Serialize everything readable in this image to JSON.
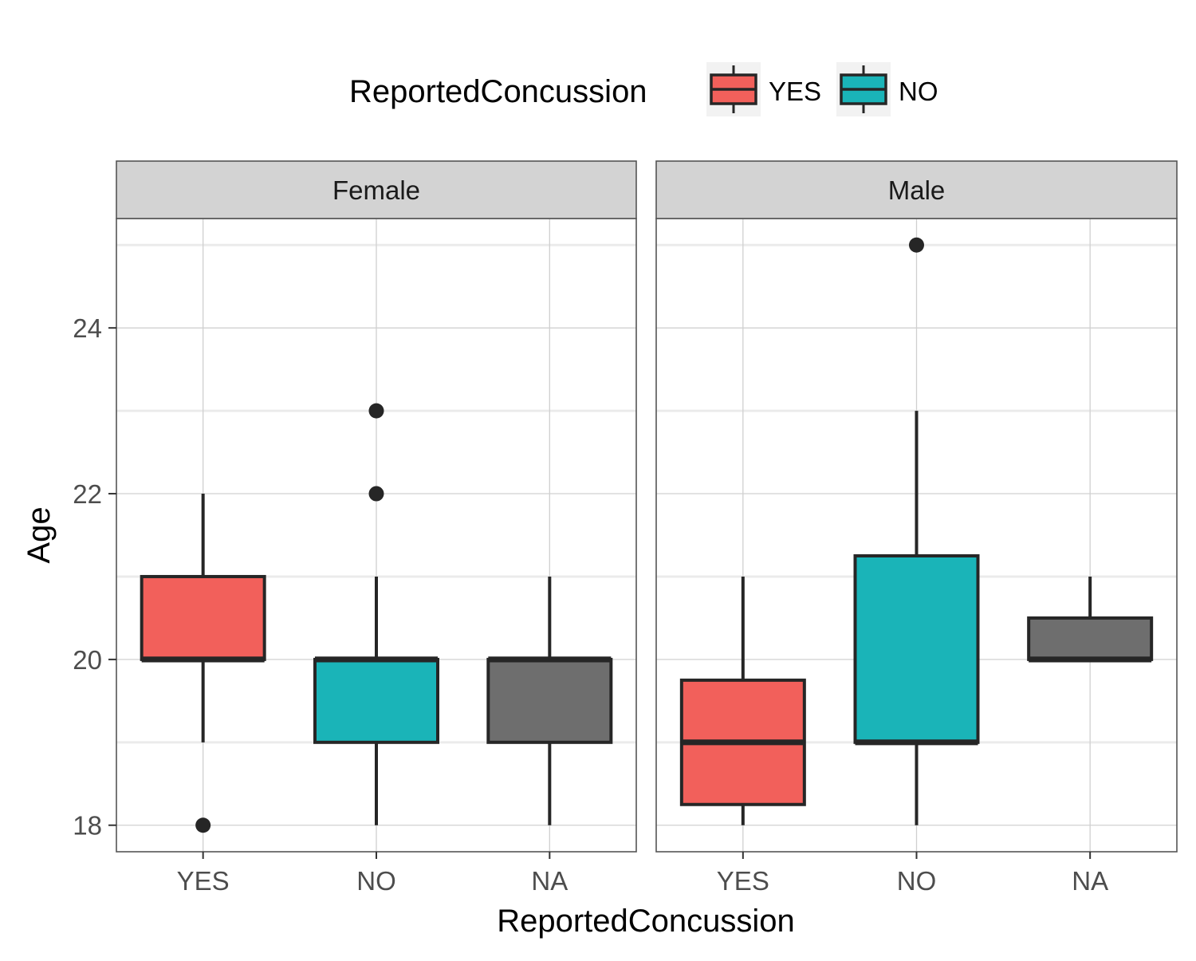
{
  "chart_data": {
    "type": "boxplot",
    "xlabel": "ReportedConcussion",
    "ylabel": "Age",
    "ylim": [
      17.68,
      25.32
    ],
    "yticks": [
      18,
      20,
      22,
      24
    ],
    "categories": [
      "YES",
      "NO",
      "NA"
    ],
    "grid": true,
    "legend": {
      "title": "ReportedConcussion",
      "position": "top",
      "entries": [
        {
          "label": "YES",
          "color": "#F8766D"
        },
        {
          "label": "NO",
          "color": "#00BFC4"
        }
      ]
    },
    "colors": {
      "YES": "#F2605B",
      "NO": "#1AB4B8",
      "NA": "#6E6E6E",
      "strip": "#D3D3D3",
      "grid_major": "#D0D0D0",
      "grid_minor": "#EBEBEB",
      "outline": "#262626"
    },
    "panels": [
      {
        "title": "Female",
        "boxes": [
          {
            "category": "YES",
            "min": 19,
            "q1": 20,
            "median": 20,
            "q3": 21,
            "max": 22,
            "outliers": [
              18
            ]
          },
          {
            "category": "NO",
            "min": 18,
            "q1": 19,
            "median": 20,
            "q3": 20,
            "max": 21,
            "outliers": [
              22,
              23
            ]
          },
          {
            "category": "NA",
            "min": 18,
            "q1": 19,
            "median": 20,
            "q3": 20,
            "max": 21,
            "outliers": []
          }
        ]
      },
      {
        "title": "Male",
        "boxes": [
          {
            "category": "YES",
            "min": 18,
            "q1": 18.25,
            "median": 19,
            "q3": 19.75,
            "max": 21,
            "outliers": []
          },
          {
            "category": "NO",
            "min": 18,
            "q1": 19,
            "median": 19,
            "q3": 21.25,
            "max": 23,
            "outliers": [
              25
            ]
          },
          {
            "category": "NA",
            "min": 20,
            "q1": 20,
            "median": 20,
            "q3": 20.5,
            "max": 21,
            "outliers": []
          }
        ]
      }
    ]
  }
}
